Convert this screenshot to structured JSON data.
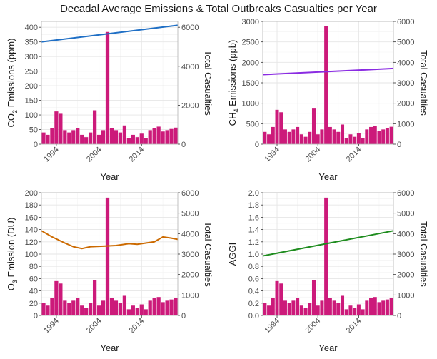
{
  "title": "Decadal Average Emissions & Total Outbreaks Casualties per Year",
  "colors": {
    "bar": "#cc1a7a",
    "co2_line": "#1f6fc5",
    "ch4_line": "#8a2be2",
    "o3_line": "#cc6a00",
    "aggi_line": "#1e8c1e",
    "grid": "#e6e6e6",
    "panel_border": "#b3b3b3"
  },
  "chart_data": [
    {
      "type": "bar",
      "xlabel": "Year",
      "ylabel_left": "CO2 Emissions (ppm)",
      "ylabel_left_parts": [
        "CO",
        "2",
        " Emissions (ppm)"
      ],
      "ylabel_right": "Total Casualties",
      "x_ticks": [
        "1994",
        "2004",
        "2014"
      ],
      "left_ylim": [
        0,
        420
      ],
      "left_ticks": [
        0,
        50,
        100,
        150,
        200,
        250,
        300,
        350,
        400
      ],
      "right_ylim": [
        0,
        6300
      ],
      "right_ticks": [
        0,
        2000,
        4000,
        6000
      ],
      "line_color_key": "co2_line",
      "line": {
        "name": "CO2",
        "y_start": 350,
        "y_end": 407,
        "shape": "linear"
      }
    },
    {
      "type": "bar",
      "xlabel": "Year",
      "ylabel_left": "CH4 Emissions (ppb)",
      "ylabel_left_parts": [
        "CH",
        "4",
        " Emissions (ppb)"
      ],
      "ylabel_right": "Total Casualties",
      "x_ticks": [
        "1994",
        "2004",
        "2014"
      ],
      "left_ylim": [
        0,
        3000
      ],
      "left_ticks": [
        0,
        500,
        1000,
        1500,
        2000,
        2500,
        3000
      ],
      "right_ylim": [
        0,
        6000
      ],
      "right_ticks": [
        0,
        1000,
        2000,
        3000,
        4000,
        5000,
        6000
      ],
      "line_color_key": "ch4_line",
      "line": {
        "name": "CH4",
        "y_start": 1700,
        "y_end": 1850,
        "shape": "linear"
      }
    },
    {
      "type": "bar",
      "xlabel": "Year",
      "ylabel_left": "O3 Emission (DU)",
      "ylabel_left_parts": [
        "O",
        "3",
        " Emission (DU)"
      ],
      "ylabel_right": "Total Casualties",
      "x_ticks": [
        "1994",
        "2004",
        "2014"
      ],
      "left_ylim": [
        0,
        200
      ],
      "left_ticks": [
        0,
        20,
        40,
        60,
        80,
        100,
        120,
        140,
        160,
        180,
        200
      ],
      "right_ylim": [
        0,
        6000
      ],
      "right_ticks": [
        0,
        1000,
        2000,
        3000,
        4000,
        5000,
        6000
      ],
      "line_color_key": "o3_line",
      "line": {
        "name": "O3",
        "shape": "custom",
        "points": [
          [
            1991,
            138
          ],
          [
            1993,
            128
          ],
          [
            1996,
            118
          ],
          [
            1998,
            112
          ],
          [
            2000,
            109
          ],
          [
            2002,
            112
          ],
          [
            2005,
            113
          ],
          [
            2008,
            114
          ],
          [
            2011,
            117
          ],
          [
            2013,
            116
          ],
          [
            2015,
            118
          ],
          [
            2017,
            120
          ],
          [
            2019,
            128
          ],
          [
            2021,
            126
          ],
          [
            2022,
            124
          ]
        ]
      }
    },
    {
      "type": "bar",
      "xlabel": "Year",
      "ylabel_left": "AGGI",
      "ylabel_left_parts": [
        "AGGI",
        "",
        ""
      ],
      "ylabel_right": "Total Casualties",
      "x_ticks": [
        "1994",
        "2004",
        "2014"
      ],
      "left_ylim": [
        0,
        2.0
      ],
      "left_ticks": [
        "0.0",
        "0.2",
        "0.4",
        "0.6",
        "0.8",
        "1.0",
        "1.2",
        "1.4",
        "1.6",
        "1.8",
        "2.0"
      ],
      "right_ylim": [
        0,
        6000
      ],
      "right_ticks": [
        0,
        1000,
        2000,
        3000,
        4000,
        5000,
        6000
      ],
      "line_color_key": "aggi_line",
      "line": {
        "name": "AGGI",
        "y_start": 0.97,
        "y_end": 1.38,
        "shape": "linear"
      }
    }
  ],
  "years": [
    1991,
    1992,
    1993,
    1994,
    1995,
    1996,
    1997,
    1998,
    1999,
    2000,
    2001,
    2002,
    2003,
    2004,
    2005,
    2006,
    2007,
    2008,
    2009,
    2010,
    2011,
    2012,
    2013,
    2014,
    2015,
    2016,
    2017,
    2018,
    2019,
    2020,
    2021,
    2022
  ],
  "casualties": [
    600,
    480,
    840,
    1680,
    1560,
    720,
    600,
    720,
    840,
    480,
    360,
    600,
    1740,
    480,
    720,
    5760,
    840,
    720,
    600,
    960,
    300,
    480,
    360,
    540,
    300,
    720,
    840,
    900,
    650,
    720,
    780,
    850
  ]
}
